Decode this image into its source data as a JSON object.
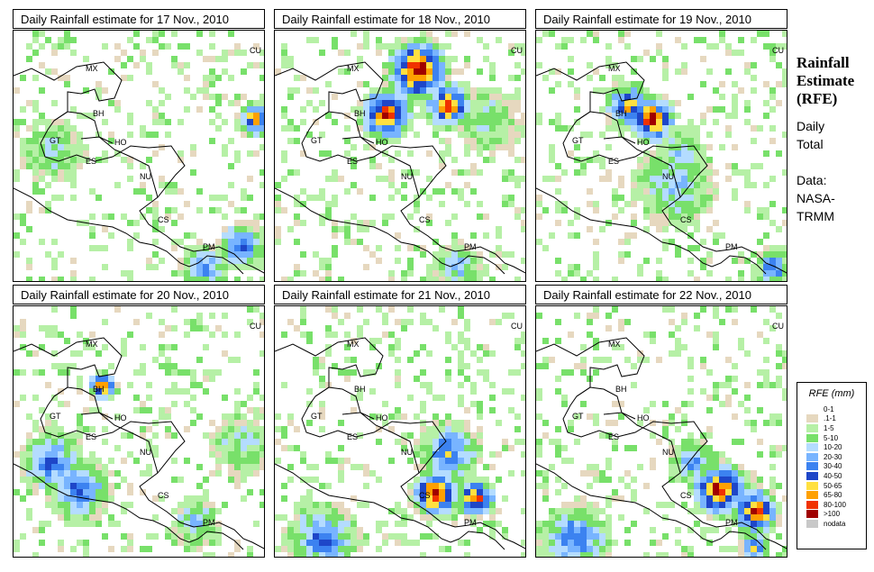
{
  "sidebar": {
    "title_line1": "Rainfall",
    "title_line2": "Estimate",
    "title_line3": "(RFE)",
    "daily": "Daily",
    "total": "Total",
    "data_label": "Data:",
    "source_line1": "NASA-",
    "source_line2": "TRMM"
  },
  "panels": [
    {
      "title": "Daily Rainfall estimate for  17 Nov., 2010"
    },
    {
      "title": "Daily Rainfall estimate for  18 Nov., 2010"
    },
    {
      "title": "Daily Rainfall estimate for  19 Nov., 2010"
    },
    {
      "title": "Daily Rainfall estimate for  20 Nov., 2010"
    },
    {
      "title": "Daily Rainfall estimate for  21 Nov., 2010"
    },
    {
      "title": "Daily Rainfall estimate for  22 Nov., 2010"
    }
  ],
  "countries": [
    "MX",
    "CU",
    "BH",
    "GT",
    "HO",
    "ES",
    "NU",
    "CS",
    "PM"
  ],
  "legend": {
    "title": "RFE (mm)",
    "items": [
      {
        "label": "0-1",
        "color": "#ffffff"
      },
      {
        "label": ".1-1",
        "color": "#e6d8bf"
      },
      {
        "label": "1-5",
        "color": "#b6f0a6"
      },
      {
        "label": "5-10",
        "color": "#78e06a"
      },
      {
        "label": "10-20",
        "color": "#b4dcff"
      },
      {
        "label": "20-30",
        "color": "#78b4ff"
      },
      {
        "label": "30-40",
        "color": "#3c82f0"
      },
      {
        "label": "40-50",
        "color": "#1e46c8"
      },
      {
        "label": "50-65",
        "color": "#ffe040"
      },
      {
        "label": "65-80",
        "color": "#ffa000"
      },
      {
        "label": "80-100",
        "color": "#f03200"
      },
      {
        "label": ">100",
        "color": "#a00000"
      },
      {
        "label": "nodata",
        "color": "#c8c8c8"
      }
    ]
  }
}
